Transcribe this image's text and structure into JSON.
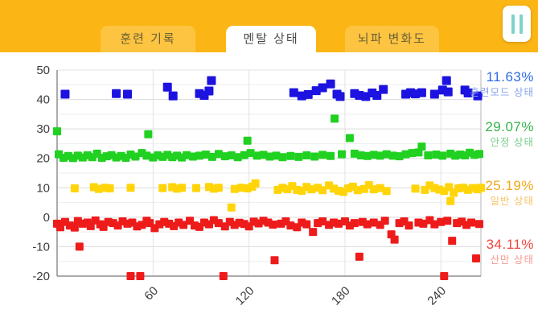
{
  "header": {
    "tabs": [
      {
        "label": "훈련 기록",
        "active": false
      },
      {
        "label": "멘탈 상태",
        "active": true
      },
      {
        "label": "뇌파 변화도",
        "active": false
      }
    ],
    "pause_icon": "pause-icon",
    "colors": {
      "header_bg": "#fbb515",
      "tab_inactive_bg": "#fcc441",
      "tab_active_bg": "#ffffff",
      "pause_bar": "#7fd2cc"
    }
  },
  "chart_data": {
    "type": "scatter",
    "marker": "square",
    "title": "",
    "xlabel": "",
    "ylabel": "",
    "xlim": [
      0,
      265
    ],
    "ylim": [
      -20,
      50
    ],
    "x_ticks": [
      60,
      120,
      180,
      240
    ],
    "y_ticks": [
      50,
      40,
      30,
      20,
      10,
      0,
      -10,
      -20
    ],
    "grid": true,
    "minor_grid_step": 5,
    "legend_position": "right",
    "series": [
      {
        "name": "훈련모드 상태",
        "percent": "11.63%",
        "color": "#1c13e0",
        "label_color": "#2d6ce5",
        "sublabel_color": "#8aa4ee",
        "size": 11,
        "points": [
          [
            5,
            41.8
          ],
          [
            37,
            42
          ],
          [
            44,
            41.8
          ],
          [
            69,
            44.2
          ],
          [
            72.5,
            41.2
          ],
          [
            89,
            42
          ],
          [
            92,
            41.4
          ],
          [
            95,
            42.9
          ],
          [
            96.5,
            46.4
          ],
          [
            148,
            42.3
          ],
          [
            153,
            41.2
          ],
          [
            157,
            41.7
          ],
          [
            162,
            43
          ],
          [
            166,
            44
          ],
          [
            171,
            45.3
          ],
          [
            175,
            41.8
          ],
          [
            177,
            41
          ],
          [
            186,
            42
          ],
          [
            189,
            41.4
          ],
          [
            193,
            41
          ],
          [
            197,
            42.2
          ],
          [
            200,
            41.4
          ],
          [
            204,
            43.4
          ],
          [
            218,
            41.8
          ],
          [
            221,
            42.3
          ],
          [
            224,
            41.9
          ],
          [
            228,
            42.3
          ],
          [
            236,
            41.8
          ],
          [
            241,
            43.2
          ],
          [
            243.5,
            46.4
          ],
          [
            244.5,
            42.6
          ],
          [
            255,
            43.2
          ],
          [
            257,
            42.2
          ],
          [
            263,
            41.2
          ]
        ]
      },
      {
        "name": "안정 상태",
        "percent": "29.07%",
        "color": "#21d121",
        "label_color": "#35b34a",
        "sublabel_color": "#7ccf8d",
        "size": 10,
        "points": [
          [
            0,
            29.2
          ],
          [
            57,
            28.2
          ],
          [
            119,
            26
          ],
          [
            173.5,
            33.5
          ],
          [
            183,
            26.9
          ],
          [
            228,
            24
          ],
          [
            1,
            21.4
          ],
          [
            4,
            20.2
          ],
          [
            7,
            20.8
          ],
          [
            10,
            20.1
          ],
          [
            13,
            20.9
          ],
          [
            16,
            20.3
          ],
          [
            19,
            21
          ],
          [
            22,
            20.4
          ],
          [
            25,
            21.6
          ],
          [
            28,
            20.2
          ],
          [
            31,
            20.7
          ],
          [
            34,
            21.1
          ],
          [
            37,
            20.3
          ],
          [
            40,
            20.8
          ],
          [
            43,
            20.2
          ],
          [
            46,
            21.3
          ],
          [
            49,
            20.6
          ],
          [
            53,
            21.8
          ],
          [
            56,
            20.9
          ],
          [
            60,
            20.3
          ],
          [
            63,
            21
          ],
          [
            66,
            20.5
          ],
          [
            69,
            21.2
          ],
          [
            72,
            20.4
          ],
          [
            75,
            20.9
          ],
          [
            78,
            20.3
          ],
          [
            81,
            21.1
          ],
          [
            85,
            20.6
          ],
          [
            89,
            20.9
          ],
          [
            93,
            21.3
          ],
          [
            97,
            20.5
          ],
          [
            101,
            21.5
          ],
          [
            105,
            20.7
          ],
          [
            109,
            21
          ],
          [
            113,
            20.4
          ],
          [
            117,
            21.1
          ],
          [
            121,
            21.8
          ],
          [
            125,
            20.9
          ],
          [
            129,
            21.2
          ],
          [
            133,
            20.6
          ],
          [
            137,
            20.9
          ],
          [
            141,
            20.4
          ],
          [
            146,
            20.8
          ],
          [
            151,
            20.5
          ],
          [
            156,
            21
          ],
          [
            161,
            20.6
          ],
          [
            166,
            21.2
          ],
          [
            171,
            20.8
          ],
          [
            178,
            21.4
          ],
          [
            186,
            21.6
          ],
          [
            190,
            21
          ],
          [
            194,
            20.8
          ],
          [
            198,
            21.2
          ],
          [
            202,
            20.9
          ],
          [
            206,
            21.4
          ],
          [
            210,
            20.9
          ],
          [
            214,
            20.7
          ],
          [
            218,
            21.4
          ],
          [
            222,
            21.8
          ],
          [
            226,
            22
          ],
          [
            232,
            21
          ],
          [
            237,
            21.3
          ],
          [
            241,
            20.9
          ],
          [
            246,
            21.6
          ],
          [
            249,
            20.9
          ],
          [
            252,
            21.3
          ],
          [
            255,
            21
          ],
          [
            258,
            21.9
          ],
          [
            261,
            21.2
          ],
          [
            264,
            21.5
          ]
        ]
      },
      {
        "name": "일반 상태",
        "percent": "25.19%",
        "color": "#ffd50a",
        "label_color": "#f2a61c",
        "sublabel_color": "#f6c468",
        "size": 10,
        "points": [
          [
            11,
            9.8
          ],
          [
            23,
            10.2
          ],
          [
            26,
            9.6
          ],
          [
            30,
            10
          ],
          [
            33,
            9.8
          ],
          [
            46,
            10
          ],
          [
            66,
            9.9
          ],
          [
            72,
            10.2
          ],
          [
            75,
            9.7
          ],
          [
            78,
            10
          ],
          [
            87,
            9.9
          ],
          [
            95,
            10.3
          ],
          [
            98,
            9.7
          ],
          [
            101,
            10
          ],
          [
            109,
            3.3
          ],
          [
            111,
            9.6
          ],
          [
            115,
            10
          ],
          [
            119,
            9.8
          ],
          [
            122,
            10.4
          ],
          [
            124,
            11.5
          ],
          [
            138,
            9.3
          ],
          [
            141,
            10
          ],
          [
            144,
            9.5
          ],
          [
            147,
            10.6
          ],
          [
            150,
            9.3
          ],
          [
            153,
            9
          ],
          [
            156,
            10.3
          ],
          [
            159,
            9.5
          ],
          [
            163,
            10
          ],
          [
            166,
            9.2
          ],
          [
            170,
            10.8
          ],
          [
            173,
            9.7
          ],
          [
            176,
            9
          ],
          [
            179,
            8.6
          ],
          [
            182,
            9.8
          ],
          [
            185,
            10.4
          ],
          [
            188,
            9.2
          ],
          [
            192,
            9.6
          ],
          [
            195,
            10.9
          ],
          [
            198,
            9.5
          ],
          [
            202,
            9.9
          ],
          [
            206,
            8.9
          ],
          [
            224,
            9.7
          ],
          [
            230,
            9.3
          ],
          [
            233,
            10.8
          ],
          [
            236,
            9.9
          ],
          [
            239,
            9.4
          ],
          [
            242,
            8.9
          ],
          [
            245,
            10.2
          ],
          [
            246,
            5.5
          ],
          [
            248,
            8.3
          ],
          [
            251,
            9.8
          ],
          [
            254,
            10
          ],
          [
            257,
            9.3
          ],
          [
            260,
            9.9
          ],
          [
            263,
            9.5
          ],
          [
            265,
            10
          ]
        ]
      },
      {
        "name": "산만 상태",
        "percent": "34.11%",
        "color": "#ee1b1b",
        "label_color": "#f2453d",
        "sublabel_color": "#f59b94",
        "size": 10,
        "points": [
          [
            14,
            -10
          ],
          [
            46,
            -20
          ],
          [
            52,
            -20
          ],
          [
            104,
            -20
          ],
          [
            242,
            -20
          ],
          [
            136,
            -14.6
          ],
          [
            189,
            -13.4
          ],
          [
            262,
            -14
          ],
          [
            247,
            -8
          ],
          [
            209,
            -5.8
          ],
          [
            211,
            -7.6
          ],
          [
            160,
            -5
          ],
          [
            0,
            -2.2
          ],
          [
            2,
            -3.4
          ],
          [
            5,
            -1.6
          ],
          [
            8,
            -2.8
          ],
          [
            11,
            -3.5
          ],
          [
            13,
            -1.3
          ],
          [
            16,
            -2.2
          ],
          [
            19,
            -1.8
          ],
          [
            21,
            -3
          ],
          [
            24,
            -1.1
          ],
          [
            27,
            -2.4
          ],
          [
            29,
            -3.3
          ],
          [
            32,
            -1.6
          ],
          [
            35,
            -2
          ],
          [
            38,
            -2.8
          ],
          [
            41,
            -1.4
          ],
          [
            44,
            -2.2
          ],
          [
            47,
            -1.8
          ],
          [
            50,
            -3.1
          ],
          [
            53,
            -2.6
          ],
          [
            56,
            -1.2
          ],
          [
            58,
            -2
          ],
          [
            61,
            -3.7
          ],
          [
            64,
            -2.4
          ],
          [
            67,
            -1.6
          ],
          [
            70,
            -2.2
          ],
          [
            73,
            -3
          ],
          [
            76,
            -1.8
          ],
          [
            79,
            -2.6
          ],
          [
            83,
            -1.2
          ],
          [
            86,
            -2.8
          ],
          [
            89,
            -3.3
          ],
          [
            92,
            -1.8
          ],
          [
            95,
            -2.4
          ],
          [
            98,
            -1
          ],
          [
            101,
            -2
          ],
          [
            105,
            -3.1
          ],
          [
            108,
            -1.6
          ],
          [
            111,
            -2.6
          ],
          [
            114,
            -1.9
          ],
          [
            117,
            -2.3
          ],
          [
            120,
            -3.1
          ],
          [
            123,
            -1.5
          ],
          [
            126,
            -2.1
          ],
          [
            129,
            -1.2
          ],
          [
            132,
            -1.8
          ],
          [
            135,
            -2.5
          ],
          [
            140,
            -2.2
          ],
          [
            143,
            -1.4
          ],
          [
            146,
            -2.8
          ],
          [
            150,
            -3.4
          ],
          [
            153,
            -1.8
          ],
          [
            156,
            -2.4
          ],
          [
            163,
            -2
          ],
          [
            166,
            -1.4
          ],
          [
            170,
            -2.6
          ],
          [
            173,
            -1.8
          ],
          [
            176,
            -2.2
          ],
          [
            180,
            -1.4
          ],
          [
            183,
            -2.8
          ],
          [
            186,
            -2
          ],
          [
            191,
            -1.6
          ],
          [
            194,
            -2.4
          ],
          [
            198,
            -1.8
          ],
          [
            202,
            -2.6
          ],
          [
            205,
            -1.2
          ],
          [
            214,
            -2
          ],
          [
            217,
            -1.4
          ],
          [
            220,
            -2.8
          ],
          [
            226,
            -1.8
          ],
          [
            229,
            -2.2
          ],
          [
            233,
            -1
          ],
          [
            236,
            -2.4
          ],
          [
            240,
            -1.6
          ],
          [
            244,
            -1.2
          ],
          [
            250,
            -2
          ],
          [
            253,
            -1.5
          ],
          [
            256,
            -2.6
          ],
          [
            259,
            -1.8
          ],
          [
            264,
            -2.3
          ]
        ]
      }
    ]
  }
}
